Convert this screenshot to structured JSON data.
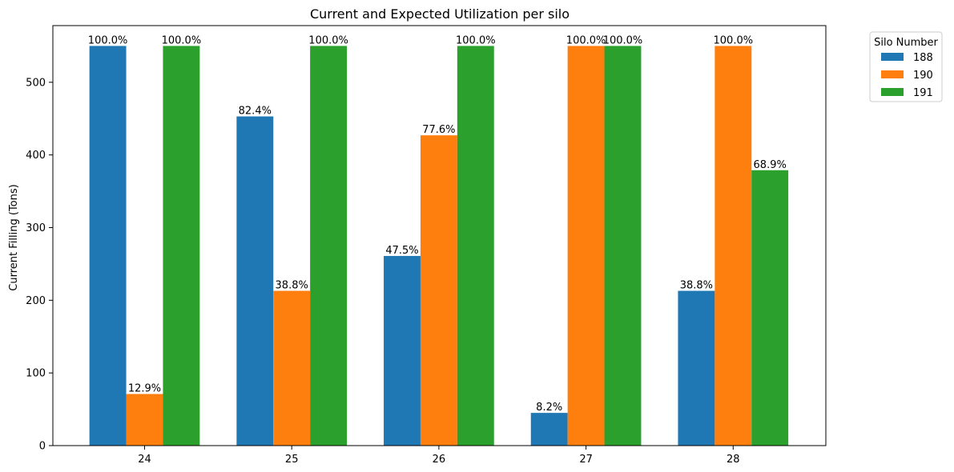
{
  "chart_data": {
    "type": "bar",
    "title": "Current and Expected Utilization per silo",
    "xlabel": "",
    "ylabel": "Current Filling (Tons)",
    "ylim": [
      0,
      578
    ],
    "yticks": [
      0,
      100,
      200,
      300,
      400,
      500
    ],
    "categories": [
      "24",
      "25",
      "26",
      "27",
      "28"
    ],
    "series": [
      {
        "name": "188",
        "color": "#1f77b4",
        "values": [
          550,
          453,
          261,
          45,
          213
        ],
        "labels": [
          "100.0%",
          "82.4%",
          "47.5%",
          "8.2%",
          "38.8%"
        ]
      },
      {
        "name": "190",
        "color": "#ff7f0e",
        "values": [
          71,
          213,
          427,
          550,
          550
        ],
        "labels": [
          "12.9%",
          "38.8%",
          "77.6%",
          "100.0%",
          "100.0%"
        ]
      },
      {
        "name": "191",
        "color": "#2ca02c",
        "values": [
          550,
          550,
          550,
          550,
          379
        ],
        "labels": [
          "100.0%",
          "100.0%",
          "100.0%",
          "100.0%",
          "68.9%"
        ]
      }
    ],
    "legend": {
      "title": "Silo Number",
      "position": "outside-top-right"
    },
    "grid": false
  }
}
